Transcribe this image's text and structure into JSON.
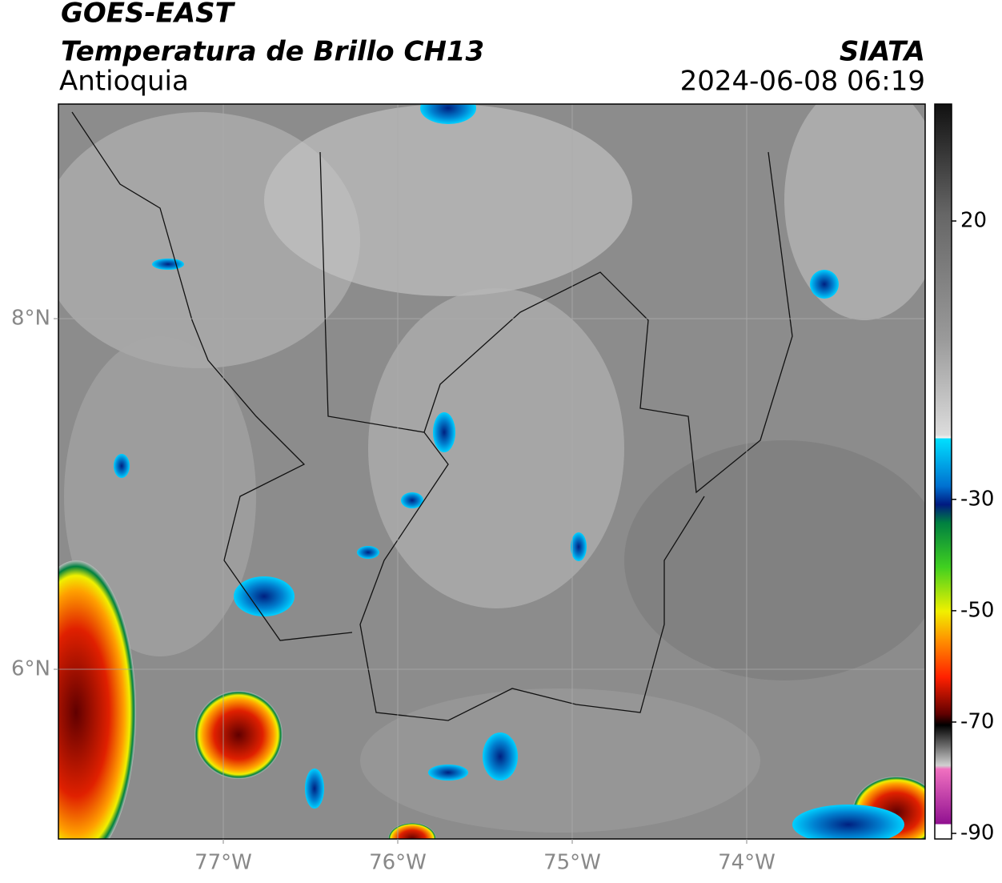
{
  "header": {
    "title": "GOES-EAST",
    "subtitle": "Temperatura de Brillo CH13",
    "region": "Antioquia",
    "source": "SIATA",
    "datetime": "2024-06-08 06:19"
  },
  "map": {
    "xlim": [
      -77.945,
      -72.977
    ],
    "ylim": [
      5.032,
      9.224
    ],
    "xticks": [
      {
        "value": -77,
        "label": "77°W"
      },
      {
        "value": -76,
        "label": "76°W"
      },
      {
        "value": -75,
        "label": "75°W"
      },
      {
        "value": -74,
        "label": "74°W"
      }
    ],
    "yticks": [
      {
        "value": 8,
        "label": "8°N"
      },
      {
        "value": 6,
        "label": "6°N"
      }
    ]
  },
  "colorbar": {
    "lim": [
      -91,
      41
    ],
    "ticks": [
      20,
      -30,
      -50,
      -70,
      -90
    ]
  }
}
